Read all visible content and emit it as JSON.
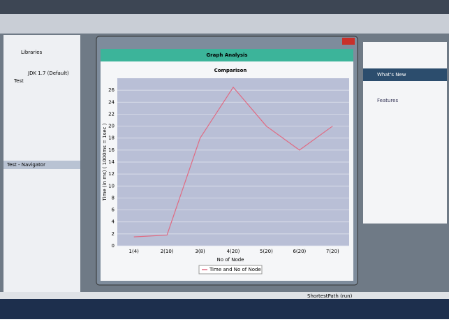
{
  "ide": {
    "tree": [
      "Libraries",
      "JDK 1.7 (Default)",
      "Test"
    ],
    "navigator": "Test - Navigator",
    "whats_new": "What's New",
    "features": "Features",
    "task": "ShortestPath (run)"
  },
  "window": {
    "title": "Graph Analysis"
  },
  "chart_data": {
    "type": "line",
    "title": "Comparison",
    "x_label": "No of Node",
    "y_label": "Time (in ms) ( 1000ms = 1sec )",
    "categories": [
      "1(4)",
      "2(10)",
      "3(8)",
      "4(20)",
      "5(20)",
      "6(20)",
      "7(20)"
    ],
    "series": [
      {
        "name": "Time and No of Node",
        "color": "#e06a82",
        "values": [
          1.5,
          1.8,
          18,
          26.5,
          20,
          16,
          20
        ]
      }
    ],
    "ylim": [
      0,
      28
    ],
    "yticks": [
      0,
      2,
      4,
      6,
      8,
      10,
      12,
      14,
      16,
      18,
      20,
      22,
      24,
      26
    ],
    "grid": true
  }
}
